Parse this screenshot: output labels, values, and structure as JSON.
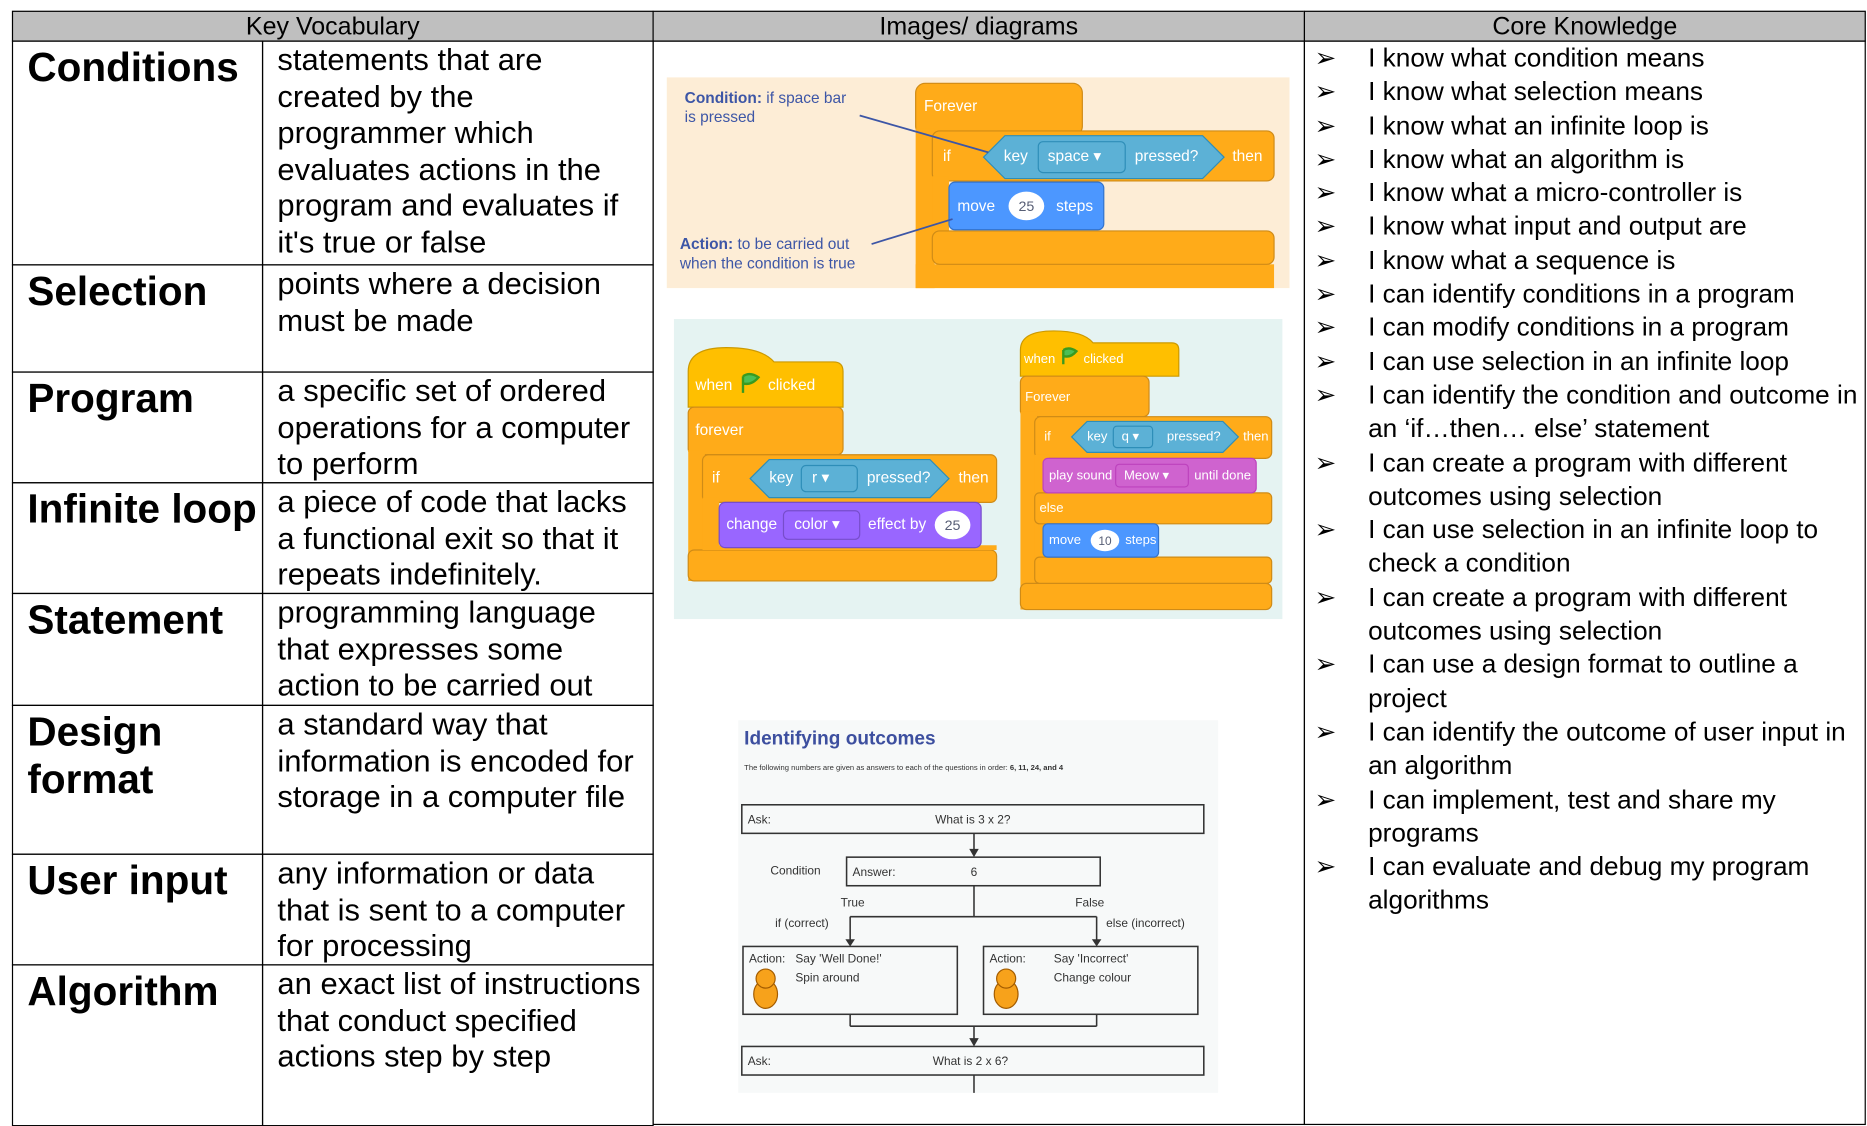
{
  "header": {
    "vocabulary": "Key Vocabulary",
    "images": "Images/ diagrams",
    "core": "Core Knowledge"
  },
  "vocabulary": [
    {
      "term": "Conditions",
      "definition": "statements that are created by the programmer which evaluates actions in the program and evaluates if it's true or false"
    },
    {
      "term": "Selection",
      "definition": "points where a decision must be made"
    },
    {
      "term": "Program",
      "definition": "a specific set of ordered operations for a computer to perform"
    },
    {
      "term": "Infinite loop",
      "definition": "a piece of code that lacks a functional exit so that it repeats indefinitely."
    },
    {
      "term": "Statement",
      "definition": "programming language that expresses some action to be carried out"
    },
    {
      "term": "Design format",
      "definition": "a standard way that information is encoded for storage in a computer file"
    },
    {
      "term": "User input",
      "definition": "any information or data that is sent to a computer for processing"
    },
    {
      "term": "Algorithm",
      "definition": "an exact list of instructions that conduct specified actions step by step"
    }
  ],
  "diagrams": {
    "condition_example": {
      "condition_note": {
        "label": "Condition:",
        "lines": [
          "if space bar",
          "is pressed"
        ]
      },
      "action_note": {
        "label": "Action:",
        "lines": [
          "to be carried out",
          "when the condition is true"
        ]
      },
      "forever": "Forever",
      "if": "if",
      "key": "key",
      "key_choice": "space ▾",
      "pressed": "pressed?",
      "then": "then",
      "move": "move",
      "steps_count": "25",
      "steps": "steps"
    },
    "loop_examples": [
      {
        "when": "when",
        "clicked": "clicked",
        "forever": "forever",
        "if": "if",
        "key": "key",
        "key_choice": "r ▾",
        "pressed": "pressed?",
        "then": "then",
        "change": "change",
        "effect_choice": "color ▾",
        "effect_by": "effect by",
        "amount": "25"
      },
      {
        "when": "when",
        "clicked": "clicked",
        "forever": "Forever",
        "if": "if",
        "key": "key",
        "key_choice": "q ▾",
        "pressed": "pressed?",
        "then": "then",
        "play_sound": "play sound",
        "sound_choice": "Meow ▾",
        "until_done": "until done",
        "else": "else",
        "move": "move",
        "steps_count": "10",
        "steps": "steps"
      }
    ],
    "flowchart": {
      "title": "Identifying outcomes",
      "intro": "The following numbers are given as answers to each of the questions in order: ",
      "answers": "6, 11, 24, and 4",
      "ask_1": {
        "label": "Ask:",
        "question": "What is 3 x 2?"
      },
      "condition": {
        "label": "Condition",
        "answer_label": "Answer:",
        "answer": "6"
      },
      "true": "True",
      "false": "False",
      "if_branch": "if (correct)",
      "else_branch": "else (incorrect)",
      "action_true": {
        "label": "Action:",
        "lines": [
          "Say 'Well Done!'",
          "Spin around"
        ]
      },
      "action_false": {
        "label": "Action:",
        "lines": [
          "Say 'Incorrect'",
          "Change colour"
        ]
      },
      "ask_2": {
        "label": "Ask:",
        "question": "What is 2 x 6?"
      }
    }
  },
  "core_knowledge": [
    "I know what condition means",
    "I know what selection means",
    "I know what an infinite loop is",
    "I know what an algorithm is",
    "I know what a micro-controller is",
    "I know what input and output are",
    "I know what a sequence is",
    "I can identify conditions in a program",
    "I can modify conditions in a program",
    "I can use selection in an infinite loop",
    "I can identify the condition and outcome in an ‘if…then… else’ statement",
    "I can create a program with different outcomes using selection",
    "I can use selection in an infinite loop to check a condition",
    "I can create a program with different outcomes using selection",
    "I can use a design format to outline a project",
    "I can identify the outcome of user input in an algorithm",
    "I can implement, test and share my programs",
    "I can evaluate and debug my program algorithms"
  ]
}
